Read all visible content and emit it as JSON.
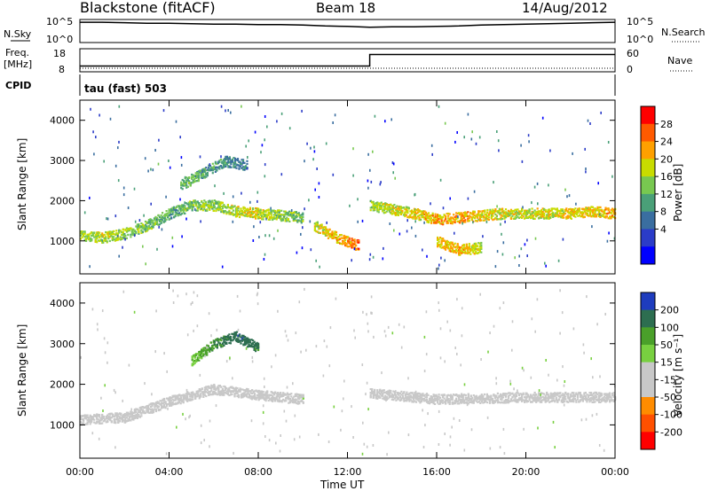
{
  "header": {
    "station": "Blackstone (fitACF)",
    "beam": "Beam 18",
    "date": "14/Aug/2012"
  },
  "top_panels": {
    "nsky_label": "N.Sky",
    "nsky_ticks": [
      "10^5",
      "10^0"
    ],
    "nsearch_label": "N.Search",
    "freq_label_1": "Freq.",
    "freq_label_2": "[MHz]",
    "freq_ticks": [
      "18",
      "8"
    ],
    "nave_label": "Nave",
    "nave_ticks": [
      "60",
      "0"
    ],
    "cpid_label": "CPID",
    "cpid_value": "tau (fast) 503"
  },
  "power_panel": {
    "ylabel": "Slant Range [km]",
    "yticks": [
      "4000",
      "3000",
      "2000",
      "1000"
    ],
    "colorbar_label": "Power [dB]",
    "colorbar_ticks": [
      "28",
      "24",
      "20",
      "16",
      "12",
      "8",
      "4"
    ],
    "colors": [
      "#ff0000",
      "#ff5a00",
      "#ffa000",
      "#c8dc00",
      "#78c850",
      "#4aa078",
      "#3a6ea0",
      "#2b3cc8",
      "#0000ff"
    ]
  },
  "velocity_panel": {
    "ylabel": "Slant Range [km]",
    "yticks": [
      "4000",
      "3000",
      "2000",
      "1000"
    ],
    "colorbar_label": "Velocity [m s⁻¹]",
    "colorbar_ticks": [
      "200",
      "100",
      "50",
      "15",
      "-15",
      "-50",
      "-100",
      "-200"
    ],
    "colors": [
      "#1e3cbe",
      "#2d6e50",
      "#4aa02a",
      "#78d040",
      "#c8c8c8",
      "#c8c8c8",
      "#ff8c00",
      "#ff5000",
      "#ff0000"
    ]
  },
  "xaxis": {
    "label": "Time UT",
    "ticks": [
      "00:00",
      "04:00",
      "08:00",
      "12:00",
      "16:00",
      "20:00",
      "00:00"
    ]
  },
  "chart_data": [
    {
      "type": "line",
      "title": "N.Sky",
      "x": [
        0,
        1,
        2,
        3,
        4,
        5,
        6,
        7,
        8,
        9,
        10,
        11,
        12,
        13,
        14,
        15,
        16,
        17,
        18,
        19,
        20,
        21,
        22,
        23,
        24
      ],
      "y_log10": [
        4.4,
        4.4,
        4.3,
        4.2,
        4.2,
        4.1,
        4.0,
        4.0,
        3.9,
        3.9,
        3.8,
        3.6,
        3.5,
        3.3,
        3.4,
        3.4,
        3.5,
        3.6,
        3.8,
        3.9,
        4.0,
        4.1,
        4.2,
        4.3,
        4.4
      ],
      "ylim_log10": [
        0,
        5
      ]
    },
    {
      "type": "line",
      "title": "Freq. [MHz]",
      "x": [
        0,
        13,
        13,
        24
      ],
      "y": [
        10.5,
        10.5,
        15.5,
        15.5
      ],
      "ylim": [
        8,
        18
      ]
    },
    {
      "type": "heatmap",
      "title": "Power [dB]",
      "xlabel": "Time UT",
      "ylabel": "Slant Range [km]",
      "xlim": [
        0,
        24
      ],
      "ylim": [
        180,
        4500
      ],
      "color_scale": [
        0,
        30
      ],
      "features": [
        {
          "x": [
            0,
            1,
            2,
            3,
            4,
            5,
            6,
            7,
            8,
            9,
            10
          ],
          "range_km": [
            1150,
            1100,
            1200,
            1400,
            1700,
            1900,
            1900,
            1750,
            1700,
            1650,
            1600
          ],
          "power_db": [
            16,
            18,
            16,
            14,
            12,
            14,
            16,
            18,
            18,
            16,
            14
          ]
        },
        {
          "x": [
            4.5,
            5.5,
            6.5,
            7.5
          ],
          "range_km": [
            2400,
            2700,
            3000,
            2900
          ],
          "power_db": [
            14,
            12,
            10,
            8
          ]
        },
        {
          "x": [
            10.5,
            11.5,
            12.5
          ],
          "range_km": [
            1400,
            1100,
            900
          ],
          "power_db": [
            18,
            22,
            26
          ]
        },
        {
          "x": [
            13,
            14,
            15,
            16,
            17,
            18,
            19,
            20,
            21,
            22,
            23,
            24
          ],
          "range_km": [
            1900,
            1800,
            1700,
            1550,
            1600,
            1650,
            1700,
            1700,
            1700,
            1700,
            1750,
            1700
          ],
          "power_db": [
            16,
            18,
            20,
            22,
            22,
            20,
            18,
            18,
            18,
            20,
            20,
            22
          ]
        },
        {
          "x": [
            16,
            17,
            18
          ],
          "range_km": [
            1000,
            800,
            850
          ],
          "power_db": [
            20,
            22,
            18
          ]
        }
      ]
    },
    {
      "type": "heatmap",
      "title": "Velocity [m s-1]",
      "xlabel": "Time UT",
      "ylabel": "Slant Range [km]",
      "xlim": [
        0,
        24
      ],
      "ylim": [
        180,
        4500
      ],
      "color_scale": [
        -250,
        250
      ],
      "features": [
        {
          "x": [
            0,
            2,
            4,
            6,
            8,
            10
          ],
          "range_km": [
            1150,
            1200,
            1600,
            1900,
            1750,
            1650
          ],
          "velocity": [
            0,
            0,
            0,
            -60,
            -40,
            10
          ]
        },
        {
          "x": [
            5,
            6,
            7,
            8
          ],
          "range_km": [
            2600,
            3000,
            3200,
            2900
          ],
          "velocity": [
            80,
            150,
            200,
            180
          ]
        },
        {
          "x": [
            13,
            16,
            20,
            24
          ],
          "range_km": [
            1800,
            1650,
            1700,
            1700
          ],
          "velocity": [
            0,
            0,
            0,
            0
          ]
        }
      ]
    }
  ]
}
